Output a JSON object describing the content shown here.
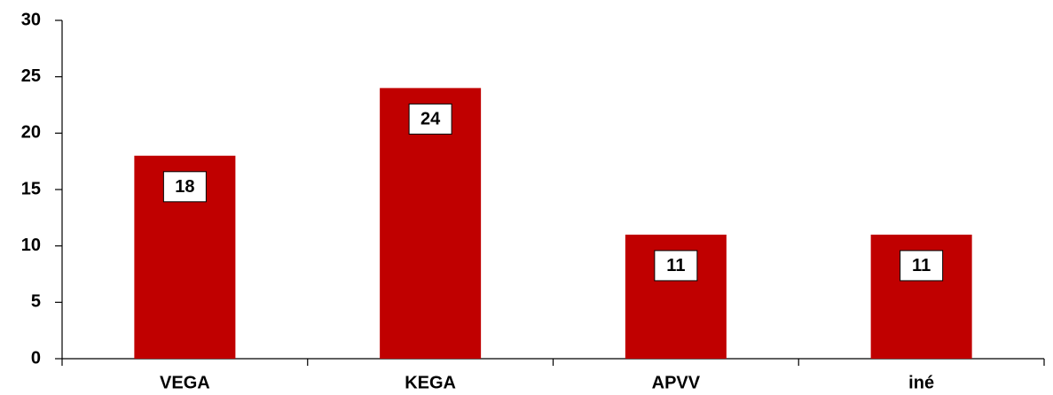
{
  "chart_data": {
    "type": "bar",
    "categories": [
      "VEGA",
      "KEGA",
      "APVV",
      "iné"
    ],
    "values": [
      18,
      24,
      11,
      11
    ],
    "color": "#c00000",
    "ylim": [
      0,
      30
    ],
    "yticks": [
      0,
      5,
      10,
      15,
      20,
      25,
      30
    ],
    "grid": false
  }
}
